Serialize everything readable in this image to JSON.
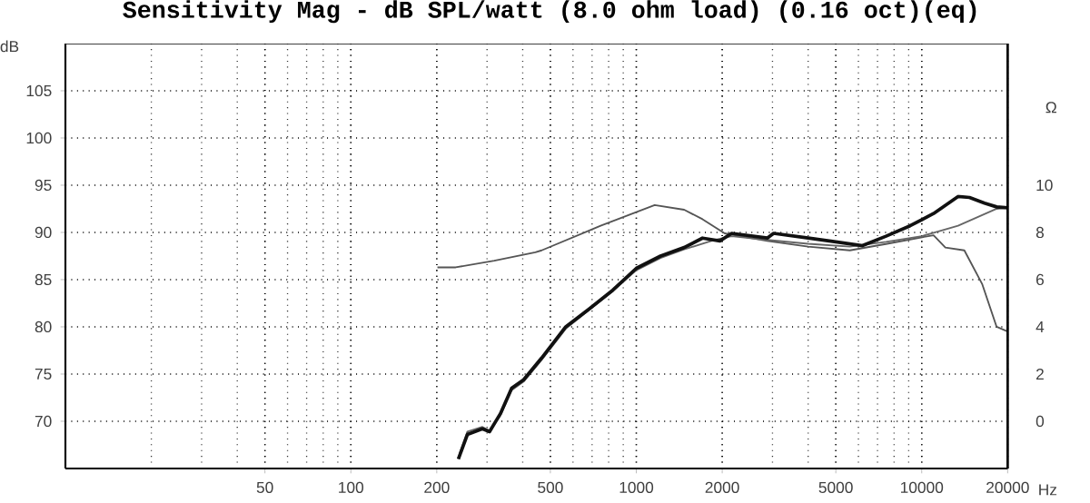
{
  "chart_data": {
    "type": "line",
    "title": "Sensitivity Mag - dB SPL/watt (8.0 ohm load) (0.16 oct)(eq)",
    "xlabel": "Hz",
    "ylabel": "dB",
    "y2label": "Ω",
    "log": "x",
    "grid": true,
    "marker": "none",
    "line_style": "solid",
    "xlim": [
      10,
      20000
    ],
    "xticks": [
      50,
      100,
      200,
      500,
      1000,
      2000,
      5000,
      10000,
      20000
    ],
    "ylim": [
      65,
      110
    ],
    "yticks": [
      70,
      75,
      80,
      85,
      90,
      95,
      100,
      105
    ],
    "y2lim": [
      -2,
      16
    ],
    "y2ticks": [
      0,
      2,
      4,
      6,
      8,
      10
    ],
    "series": [
      {
        "color": "#555555",
        "x": [
          201,
          233,
          318,
          443,
          466,
          750,
          1160,
          1471,
          1706,
          2040,
          2877,
          4000,
          5600,
          7560,
          9650,
          11000,
          12100,
          14100,
          16300,
          18300,
          20000
        ],
        "values": [
          86.3,
          86.3,
          87.0,
          87.9,
          88.1,
          90.7,
          92.9,
          92.4,
          91.4,
          89.9,
          89.1,
          88.5,
          88.1,
          88.8,
          89.4,
          89.7,
          88.4,
          88.1,
          84.5,
          80.0,
          79.5
        ]
      },
      {
        "color": "#666666",
        "x": [
          240,
          256,
          289,
          306,
          334,
          366,
          403,
          466,
          566,
          684,
          828,
          1000,
          1216,
          1471,
          1873,
          2158,
          2877,
          4000,
          5600,
          7500,
          10000,
          13400,
          18300,
          20000
        ],
        "values": [
          66.5,
          68.9,
          69.4,
          69.0,
          70.6,
          73.3,
          74.2,
          76.5,
          79.8,
          81.8,
          83.8,
          86.0,
          87.3,
          88.2,
          89.2,
          89.6,
          89.2,
          88.8,
          88.5,
          89.0,
          89.6,
          90.7,
          92.5,
          92.6
        ]
      },
      {
        "color": "#111111",
        "x": [
          238,
          256,
          289,
          306,
          334,
          366,
          403,
          466,
          566,
          684,
          828,
          1000,
          1216,
          1471,
          1706,
          1963,
          2158,
          2877,
          3026,
          4000,
          5000,
          6200,
          7500,
          9100,
          11000,
          13400,
          14700,
          16600,
          18300,
          20000
        ],
        "values": [
          66.0,
          68.6,
          69.2,
          68.9,
          70.8,
          73.5,
          74.4,
          76.7,
          80.0,
          81.9,
          83.9,
          86.2,
          87.5,
          88.4,
          89.4,
          89.1,
          89.9,
          89.4,
          89.9,
          89.4,
          89.0,
          88.6,
          89.6,
          90.7,
          92.0,
          93.8,
          93.7,
          93.1,
          92.7,
          92.6
        ]
      }
    ]
  }
}
